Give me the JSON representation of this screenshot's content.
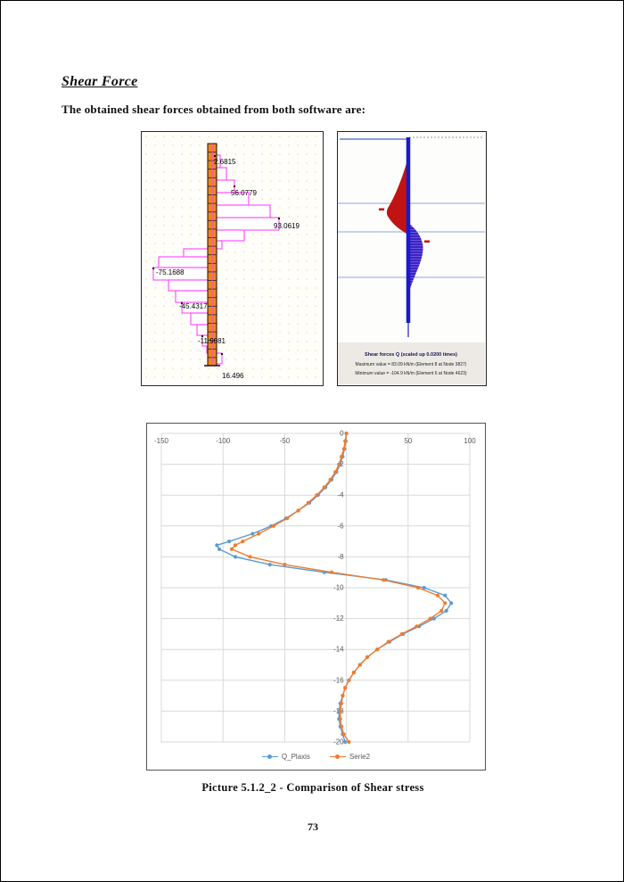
{
  "page": {
    "title": "Shear Force",
    "intro": "The obtained shear forces obtained from both software are:",
    "figure_caption": "Picture 5.1.2_2 - Comparison of Shear stress",
    "page_number": "73"
  },
  "left_figure": {
    "description": "Stepped shear force envelope along pile",
    "labels": [
      "2.6815",
      "56.0779",
      "93.0619",
      "-75.1688",
      "-45.4317",
      "-11.9081",
      "16.496"
    ],
    "pile_color": "#F08519",
    "outline_color": "#FF44FF",
    "grid_dot_color": "#E3DD7D"
  },
  "right_figure": {
    "title": "Shear forces Q (scaled up 0.0200 times)",
    "max_value_line": "Maximum value = 83.09 kN/m (Element 8 at Node 3827)",
    "min_value_line": "Minimum value = -104.9 kN/m (Element 6 at Node 4623)",
    "positive_lobe_color": "#C01414",
    "negative_lobe_color": "#3D23BD",
    "pile_color": "#1A1ACC",
    "level_line_color": "#8FA8D8"
  },
  "chart_data": {
    "type": "line",
    "title": "",
    "orientation": "x = shear force (kN/m), y = depth (m), depth 0 at top",
    "grid": true,
    "legend_position": "bottom",
    "xlim": [
      -150,
      100
    ],
    "ylim": [
      -20,
      0
    ],
    "x_ticks": [
      -150,
      -100,
      -50,
      0,
      50,
      100
    ],
    "y_ticks": [
      0,
      -2,
      -4,
      -6,
      -8,
      -10,
      -12,
      -14,
      -16,
      -18,
      -20
    ],
    "depths": [
      0,
      -0.5,
      -1,
      -1.5,
      -2,
      -2.5,
      -3,
      -3.5,
      -4,
      -4.5,
      -5,
      -5.5,
      -6,
      -6.5,
      -7,
      -7.25,
      -7.5,
      -8,
      -8.5,
      -9,
      -9.5,
      -10,
      -10.5,
      -11,
      -11.5,
      -12,
      -12.5,
      -13,
      -13.5,
      -14,
      -14.5,
      -15,
      -15.5,
      -16,
      -16.5,
      -17,
      -17.5,
      -18,
      -18.5,
      -19,
      -19.5,
      -20
    ],
    "series": [
      {
        "name": "Q_Plaxis",
        "color": "#5B9BD5",
        "values": [
          0,
          -0.5,
          -1.5,
          -3,
          -5,
          -8,
          -12,
          -17,
          -23,
          -30,
          -39,
          -49,
          -61,
          -76,
          -95,
          -105,
          -103,
          -90,
          -62,
          -18,
          32,
          63,
          80,
          85,
          81,
          71,
          59,
          46,
          35,
          25,
          17,
          11,
          6,
          2,
          -1,
          -3,
          -5,
          -6,
          -6,
          -5,
          -3,
          -1
        ]
      },
      {
        "name": "Serie2",
        "color": "#ED7D31",
        "values": [
          0,
          -1,
          -2,
          -4,
          -6,
          -9,
          -13,
          -18,
          -24,
          -31,
          -39,
          -48,
          -59,
          -71,
          -84,
          -90,
          -93,
          -78,
          -50,
          -12,
          30,
          58,
          74,
          80,
          77,
          68,
          57,
          45,
          34,
          25,
          17,
          11,
          6,
          2,
          -1,
          -3,
          -4,
          -5,
          -5,
          -4,
          -2,
          2
        ]
      }
    ]
  }
}
